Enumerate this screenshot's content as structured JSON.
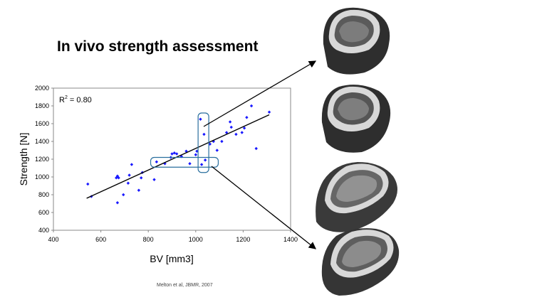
{
  "slide": {
    "title": "In vivo strength assessment",
    "citation": "Melton et al, JBMR, 2007"
  },
  "chart_data": {
    "type": "scatter",
    "title": "",
    "xlabel": "BV [mm3]",
    "ylabel": "Strength [N]",
    "xlim": [
      400,
      1400
    ],
    "ylim": [
      400,
      2000
    ],
    "xticks": [
      400,
      600,
      800,
      1000,
      1200,
      1400
    ],
    "yticks": [
      400,
      600,
      800,
      1000,
      1200,
      1400,
      1600,
      1800,
      2000
    ],
    "annotation": {
      "r2_label": "R",
      "r2_sup": "2",
      "r2_value": " = 0.80"
    },
    "marker_color": "#1a1aff",
    "grid": false,
    "points": [
      [
        545,
        920
      ],
      [
        560,
        780
      ],
      [
        665,
        990
      ],
      [
        670,
        1010
      ],
      [
        675,
        990
      ],
      [
        670,
        710
      ],
      [
        695,
        800
      ],
      [
        715,
        930
      ],
      [
        720,
        1020
      ],
      [
        730,
        1140
      ],
      [
        760,
        850
      ],
      [
        770,
        990
      ],
      [
        775,
        1050
      ],
      [
        825,
        970
      ],
      [
        835,
        1170
      ],
      [
        870,
        1150
      ],
      [
        895,
        1220
      ],
      [
        900,
        1260
      ],
      [
        910,
        1270
      ],
      [
        920,
        1260
      ],
      [
        940,
        1230
      ],
      [
        960,
        1290
      ],
      [
        975,
        1150
      ],
      [
        1000,
        1250
      ],
      [
        1005,
        1290
      ],
      [
        1020,
        1650
      ],
      [
        1025,
        1140
      ],
      [
        1035,
        1480
      ],
      [
        1040,
        1190
      ],
      [
        1060,
        1370
      ],
      [
        1075,
        1400
      ],
      [
        1090,
        1300
      ],
      [
        1110,
        1400
      ],
      [
        1130,
        1500
      ],
      [
        1145,
        1620
      ],
      [
        1150,
        1560
      ],
      [
        1170,
        1480
      ],
      [
        1195,
        1500
      ],
      [
        1205,
        1550
      ],
      [
        1215,
        1670
      ],
      [
        1235,
        1800
      ],
      [
        1255,
        1320
      ],
      [
        1310,
        1730
      ]
    ],
    "fit_line": {
      "x": [
        540,
        1310
      ],
      "y": [
        760,
        1700
      ]
    },
    "highlight_horizontal": {
      "x": [
        810,
        1095
      ],
      "y": [
        1110,
        1220
      ]
    },
    "highlight_vertical": {
      "x": [
        1010,
        1055
      ],
      "y": [
        1050,
        1720
      ]
    }
  },
  "images": [
    {
      "name": "bone-section-1"
    },
    {
      "name": "bone-section-2"
    },
    {
      "name": "bone-section-3"
    },
    {
      "name": "bone-section-4"
    }
  ]
}
